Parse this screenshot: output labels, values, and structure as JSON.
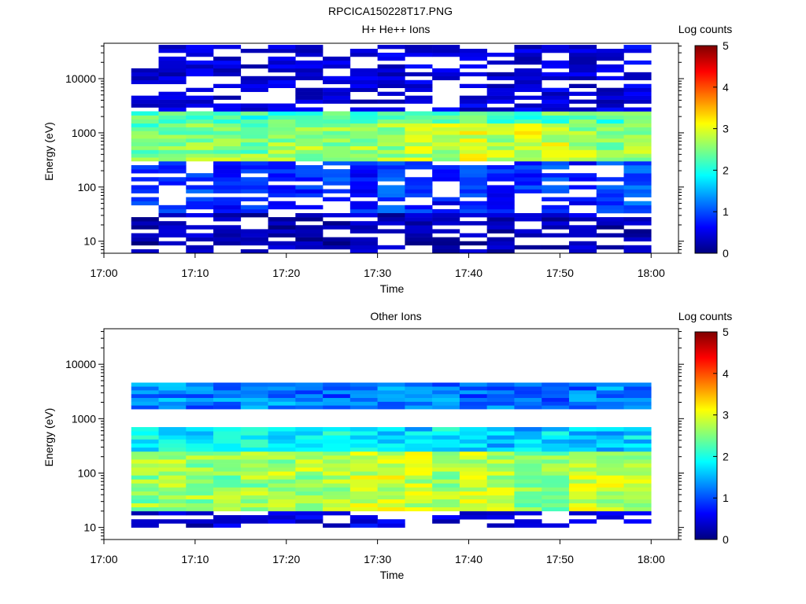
{
  "figure_title": "RPCICA150228T17.PNG",
  "colors": {
    "colormap": [
      "#00007f",
      "#0000ff",
      "#007fff",
      "#00ffff",
      "#7fff7f",
      "#ffff00",
      "#ff7f00",
      "#ff0000",
      "#7f0000"
    ],
    "background": "#ffffff"
  },
  "chart_data": [
    {
      "type": "heatmap",
      "title": "H+ He++ Ions",
      "xlabel": "Time",
      "ylabel": "Energy (eV)",
      "colorbar_label": "Log counts",
      "colorbar_ticks": [
        "0",
        "1",
        "2",
        "3",
        "4",
        "5"
      ],
      "clim": [
        0,
        5
      ],
      "x_tick_labels": [
        "17:00",
        "17:10",
        "17:20",
        "17:30",
        "17:40",
        "17:50",
        "18:00"
      ],
      "y_tick_labels": [
        "10",
        "100",
        "1000",
        "10000"
      ],
      "y_scale": "log",
      "ylim": [
        6,
        45000
      ],
      "xlim": [
        "17:00",
        "18:03"
      ],
      "time_bins": [
        "17:03",
        "17:06",
        "17:09",
        "17:12",
        "17:15",
        "17:18",
        "17:21",
        "17:24",
        "17:27",
        "17:30",
        "17:33",
        "17:36",
        "17:39",
        "17:42",
        "17:45",
        "17:48",
        "17:51",
        "17:54",
        "17:57"
      ],
      "energy_bands": [
        {
          "band": [
            33,
            300
          ],
          "values": [
            0.8,
            0.7,
            0.8,
            0.6,
            0.7,
            0.6,
            0.7,
            0.8,
            0.6,
            0.9,
            0.7,
            0.5,
            0.8,
            0.6,
            0.7,
            0.8,
            0.6,
            0.8,
            0.9
          ]
        },
        {
          "band": [
            300,
            1500
          ],
          "values": [
            2.4,
            2.5,
            2.6,
            2.6,
            2.5,
            2.6,
            2.7,
            2.6,
            2.7,
            2.7,
            2.8,
            2.8,
            2.9,
            2.8,
            2.9,
            2.9,
            2.7,
            2.6,
            2.6
          ]
        },
        {
          "band": [
            1500,
            2500
          ],
          "values": [
            2.2,
            2.3,
            2.2,
            2.3,
            2.2,
            2.3,
            2.2,
            2.4,
            2.2,
            2.3,
            2.2,
            2.3,
            2.2,
            2.3,
            2.2,
            2.3,
            2.4,
            2.2,
            2.3
          ]
        },
        {
          "band": [
            2500,
            42000
          ],
          "values": [
            0.3,
            0.3,
            0.4,
            0.3,
            0.3,
            0.3,
            0.3,
            0.3,
            0.3,
            0.3,
            0.3,
            0.4,
            0.3,
            0.3,
            0.3,
            0.3,
            0.3,
            0.3,
            0.4
          ]
        },
        {
          "band": [
            6,
            33
          ],
          "values": [
            0.1,
            0.1,
            0.2,
            0.1,
            0.1,
            0.1,
            0.1,
            0.1,
            0.2,
            0.1,
            0.1,
            0.1,
            0.1,
            0.1,
            0.1,
            0.1,
            0.2,
            0.1,
            0.1
          ]
        }
      ]
    },
    {
      "type": "heatmap",
      "title": "Other Ions",
      "xlabel": "Time",
      "ylabel": "Energy (eV)",
      "colorbar_label": "Log counts",
      "colorbar_ticks": [
        "0",
        "1",
        "2",
        "3",
        "4",
        "5"
      ],
      "clim": [
        0,
        5
      ],
      "x_tick_labels": [
        "17:00",
        "17:10",
        "17:20",
        "17:30",
        "17:40",
        "17:50",
        "18:00"
      ],
      "y_tick_labels": [
        "10",
        "100",
        "1000",
        "10000"
      ],
      "y_scale": "log",
      "ylim": [
        6,
        45000
      ],
      "xlim": [
        "17:00",
        "18:03"
      ],
      "time_bins": [
        "17:03",
        "17:06",
        "17:09",
        "17:12",
        "17:15",
        "17:18",
        "17:21",
        "17:24",
        "17:27",
        "17:30",
        "17:33",
        "17:36",
        "17:39",
        "17:42",
        "17:45",
        "17:48",
        "17:51",
        "17:54",
        "17:57"
      ],
      "energy_bands": [
        {
          "band": [
            10,
            20
          ],
          "values": [
            0.3,
            0.3,
            0.2,
            0.3,
            0.3,
            0.3,
            0.3,
            0.3,
            0.4,
            0.3,
            0.3,
            0.3,
            0.3,
            0.3,
            0.3,
            0.3,
            0.3,
            0.3,
            0.4
          ]
        },
        {
          "band": [
            20,
            250
          ],
          "values": [
            2.6,
            2.7,
            2.6,
            2.5,
            2.6,
            2.7,
            2.7,
            2.8,
            2.9,
            2.9,
            2.8,
            2.7,
            2.9,
            2.7,
            2.6,
            2.6,
            2.9,
            2.8,
            2.8
          ]
        },
        {
          "band": [
            250,
            700
          ],
          "values": [
            1.8,
            1.9,
            1.8,
            1.9,
            1.9,
            1.8,
            1.9,
            1.9,
            1.8,
            1.8,
            1.7,
            1.8,
            1.7,
            1.6,
            1.6,
            1.7,
            1.5,
            1.6,
            1.7
          ]
        },
        {
          "band": [
            1500,
            4600
          ],
          "values": [
            1.2,
            1.3,
            1.2,
            1.3,
            1.2,
            1.3,
            1.2,
            1.1,
            1.2,
            1.3,
            1.2,
            1.2,
            1.1,
            1.2,
            1.1,
            1.2,
            1.2,
            1.3,
            1.2
          ]
        }
      ]
    }
  ]
}
